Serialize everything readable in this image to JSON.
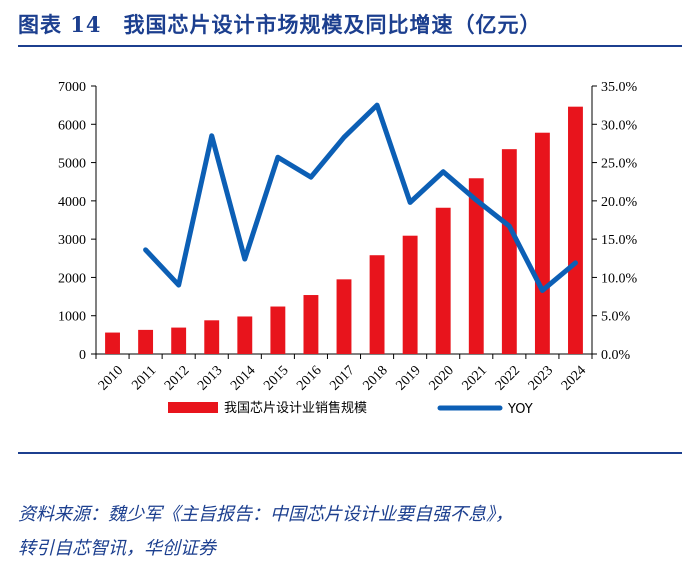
{
  "header": {
    "figure_number": "图表 14",
    "title": "我国芯片设计市场规模及同比增速（亿元）"
  },
  "footer": {
    "source_line1": "资料来源：魏少军《主旨报告：中国芯片设计业要自强不息》，",
    "source_line2": "转引自芯智讯，华创证券"
  },
  "colors": {
    "bar": "#e8141c",
    "line": "#0c5fb5",
    "title": "#1c3f8f"
  },
  "chart_data": {
    "type": "bar+line",
    "categories": [
      "2010",
      "2011",
      "2012",
      "2013",
      "2014",
      "2015",
      "2016",
      "2017",
      "2018",
      "2019",
      "2020",
      "2021",
      "2022",
      "2023",
      "2024"
    ],
    "series": [
      {
        "name": "我国芯片设计业销售规模",
        "type": "bar",
        "axis": "left",
        "values": [
          560,
          630,
          690,
          880,
          980,
          1240,
          1540,
          1950,
          2580,
          3090,
          3820,
          4590,
          5350,
          5780,
          6460
        ]
      },
      {
        "name": "YOY",
        "type": "line",
        "axis": "right",
        "values": [
          null,
          13.6,
          9.0,
          28.5,
          12.4,
          25.7,
          23.1,
          28.3,
          32.5,
          19.8,
          23.8,
          20.1,
          16.7,
          8.3,
          11.9
        ]
      }
    ],
    "y_left": {
      "min": 0,
      "max": 7000,
      "ticks": [
        "0",
        "1000",
        "2000",
        "3000",
        "4000",
        "5000",
        "6000",
        "7000"
      ]
    },
    "y_right": {
      "min": 0,
      "max": 35,
      "ticks": [
        "0.0%",
        "5.0%",
        "10.0%",
        "15.0%",
        "20.0%",
        "25.0%",
        "30.0%",
        "35.0%"
      ]
    },
    "grid": false,
    "legend_position": "bottom"
  }
}
